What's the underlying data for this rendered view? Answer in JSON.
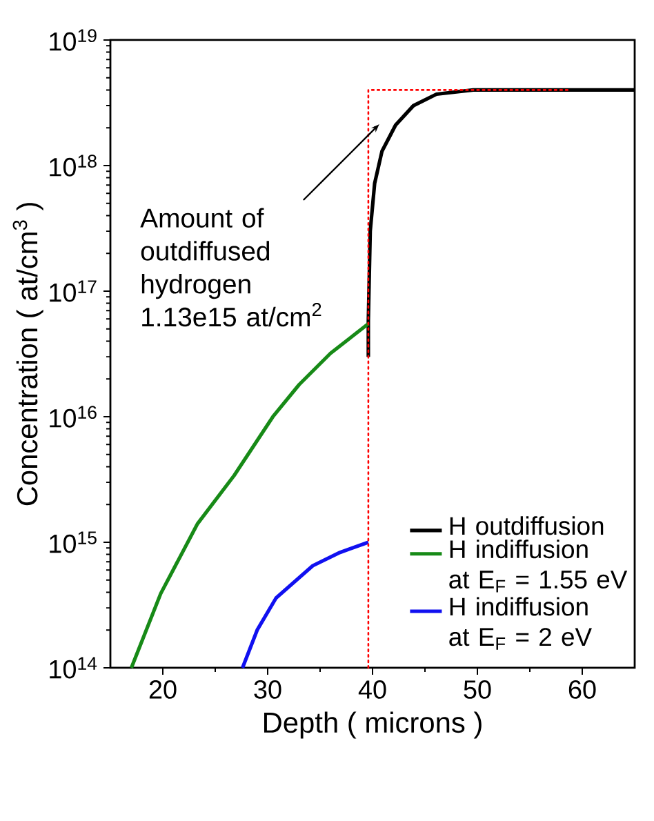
{
  "chart_data": {
    "type": "line",
    "xlabel": "Depth ( microns )",
    "ylabel": "Concentration ( at/cm$^{3}$ )",
    "log": "y",
    "xlim": [
      15,
      65
    ],
    "ylim": [
      100000000000000.0,
      1e+19
    ],
    "xticks": [
      20,
      30,
      40,
      50,
      60
    ],
    "yticks": [
      {
        "value": 100000000000000.0,
        "label": "10$^{14}$"
      },
      {
        "value": 1000000000000000.0,
        "label": "10$^{15}$"
      },
      {
        "value": 1e+16,
        "label": "10$^{16}$"
      },
      {
        "value": 1e+17,
        "label": "10$^{17}$"
      },
      {
        "value": 1e+18,
        "label": "10$^{18}$"
      },
      {
        "value": 1e+19,
        "label": "10$^{19}$"
      }
    ],
    "legend": "bottom right",
    "grid": false,
    "series": [
      {
        "name": "H outdiffusion",
        "color": "#000000",
        "x": [
          39.6,
          39.6,
          39.78,
          40.2,
          40.9,
          42.2,
          43.9,
          46.1,
          49.6,
          65
        ],
        "values": [
          3e+16,
          5.8e+16,
          3e+17,
          7.2e+17,
          1.3e+18,
          2.1e+18,
          3e+18,
          3.7e+18,
          4e+18,
          4e+18
        ]
      },
      {
        "name": "H indiffusion at E$_{F}$ = 1.55 eV",
        "color": "#178a17",
        "x": [
          17,
          19.8,
          23.3,
          26.8,
          30.5,
          33,
          36,
          39.6
        ],
        "values": [
          100000000000000.0,
          390000000000000.0,
          1400000000000000.0,
          3400000000000000.0,
          1e+16,
          1.8e+16,
          3.2e+16,
          5.5e+16
        ]
      },
      {
        "name": "H indiffusion at E$_{F}$ = 2 eV",
        "color": "#1010f0",
        "x": [
          27.6,
          29,
          30.8,
          34.3,
          36.9,
          39.6
        ],
        "values": [
          100000000000000.0,
          200000000000000.0,
          360000000000000.0,
          650000000000000.0,
          830000000000000.0,
          1000000000000000.0
        ]
      },
      {
        "color": "#ff0000",
        "line_style": "dotted",
        "x": [
          39.6,
          39.6,
          58.6
        ],
        "values": [
          100000000000000.0,
          4e+18,
          4e+18
        ]
      }
    ],
    "annotations": [
      "Amount of outdiffused hydrogen 1.13e15 at/cm$^{2}$"
    ]
  }
}
